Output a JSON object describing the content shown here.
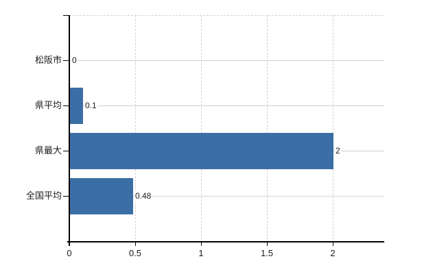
{
  "chart_data": {
    "type": "bar",
    "orientation": "horizontal",
    "title": "",
    "xlabel": "",
    "ylabel": "",
    "categories": [
      "松阪市",
      "県平均",
      "県最大",
      "全国平均"
    ],
    "values": [
      0,
      0.1,
      2,
      0.48
    ],
    "value_labels": [
      "0",
      "0.1",
      "2",
      "0.48"
    ],
    "x_ticks": [
      0,
      0.5,
      1,
      1.5,
      2
    ],
    "x_tick_labels": [
      "0",
      "0.5",
      "1",
      "1.5",
      "2"
    ],
    "xlim": [
      0,
      2.39
    ],
    "grid": true,
    "legend": false,
    "colors": {
      "bar": "#3c6ea6",
      "h_gridline": "#ccd5cb",
      "v_gridline": "#d6d1cb",
      "axis": "#000000",
      "text": "#1a1a1a",
      "background": "#ffffff"
    }
  }
}
